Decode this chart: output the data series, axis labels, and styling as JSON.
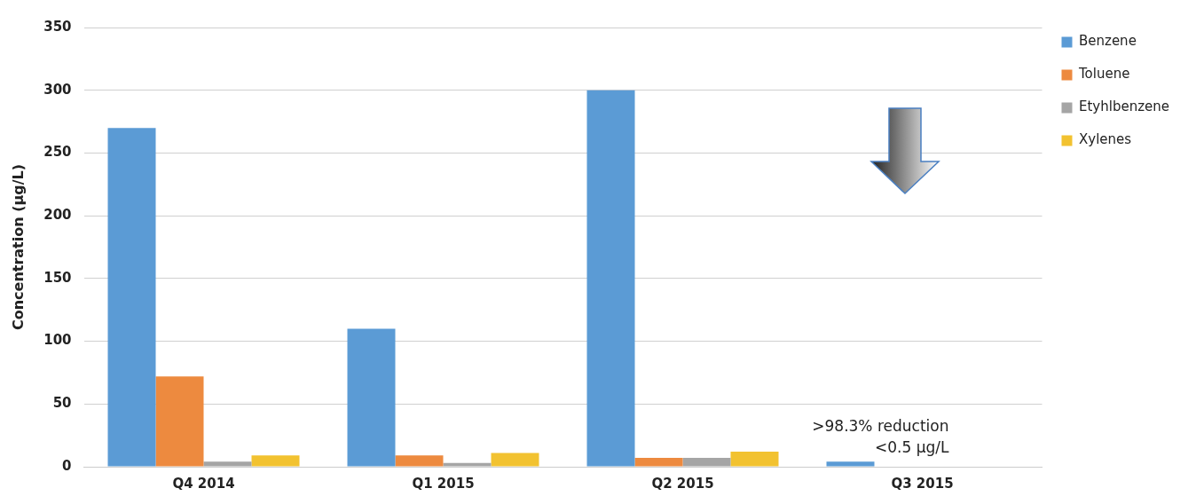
{
  "chart_data": {
    "type": "bar",
    "ylabel": "Concentration (µg/L)",
    "categories": [
      "Q4 2014",
      "Q1 2015",
      "Q2 2015",
      "Q3 2015"
    ],
    "series": [
      {
        "name": "Benzene",
        "color": "#5b9bd5",
        "values": [
          270,
          110,
          300,
          4
        ]
      },
      {
        "name": "Toluene",
        "color": "#ed8a3f",
        "values": [
          72,
          9,
          7,
          null
        ]
      },
      {
        "name": "Etyhlbenzene",
        "color": "#a5a5a5",
        "values": [
          4,
          3,
          7,
          null
        ]
      },
      {
        "name": "Xylenes",
        "color": "#f2c230",
        "values": [
          9,
          11,
          12,
          null
        ]
      }
    ],
    "ylim": [
      0,
      350
    ],
    "yticks": [
      0,
      50,
      100,
      150,
      200,
      250,
      300,
      350
    ],
    "grid": "y",
    "legend": "top right",
    "annotations": [
      ">98.3% reduction",
      "<0.5 µg/L"
    ]
  }
}
